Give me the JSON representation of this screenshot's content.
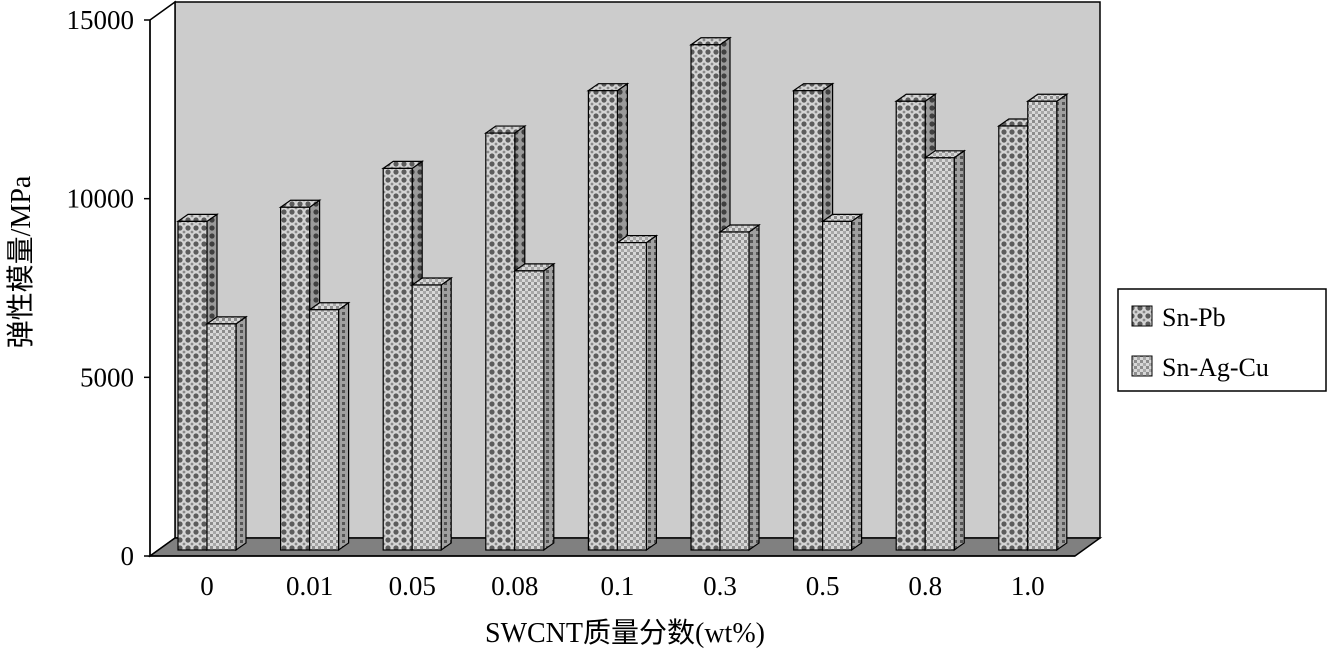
{
  "chart_data": {
    "type": "bar",
    "style": "3d-clustered",
    "categories": [
      "0",
      "0.01",
      "0.05",
      "0.08",
      "0.1",
      "0.3",
      "0.5",
      "0.8",
      "1.0"
    ],
    "series": [
      {
        "name": "Sn-Pb",
        "values": [
          9300,
          9700,
          10800,
          11800,
          13000,
          14300,
          13000,
          12700,
          12000
        ]
      },
      {
        "name": "Sn-Ag-Cu",
        "values": [
          6400,
          6800,
          7500,
          7900,
          8700,
          9000,
          9300,
          11100,
          12700
        ]
      }
    ],
    "xlabel": "SWCNT质量分数(wt%)",
    "ylabel": "弹性模量/MPa",
    "ylim": [
      0,
      15000
    ],
    "yticks": [
      "0",
      "5000",
      "10000",
      "15000"
    ],
    "grid": false,
    "legend_position": "right",
    "colors": {
      "wall": "#cccccc",
      "floor": "#808080",
      "bar_face": "#c8c8c8",
      "pattern": "#6a6a6a"
    }
  }
}
